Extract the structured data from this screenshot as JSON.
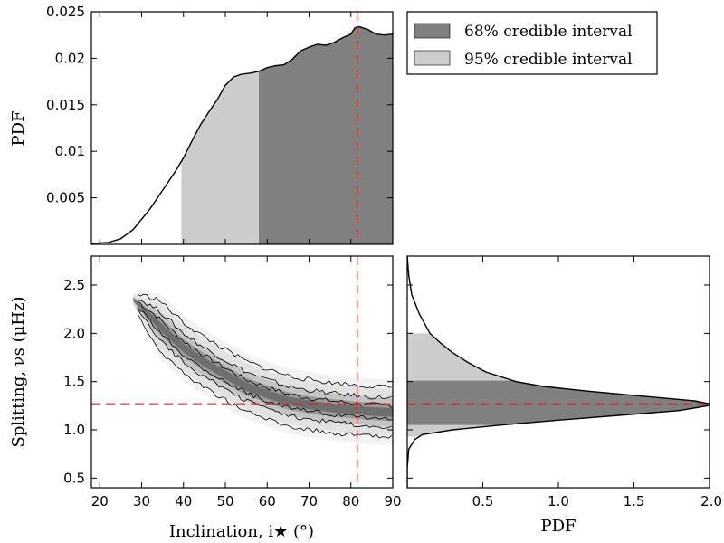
{
  "chart_data": [
    {
      "panel": "top",
      "type": "area",
      "ylabel": "PDF",
      "xlim": [
        18,
        90
      ],
      "ylim": [
        0,
        0.025
      ],
      "yticks": [
        "0.005",
        "0.01",
        "0.015",
        "0.02",
        "0.025"
      ],
      "marker_x": 81.5,
      "interval95": [
        39.5,
        90
      ],
      "interval68": [
        58,
        90
      ],
      "x": [
        18,
        22,
        25,
        28,
        30,
        32,
        35,
        38,
        40,
        42,
        44,
        46,
        48,
        50,
        52,
        54,
        56,
        58,
        60,
        62,
        64,
        66,
        68,
        70,
        72,
        74,
        76,
        78,
        80,
        81,
        82,
        84,
        86,
        88,
        90
      ],
      "y": [
        0.0001,
        0.0002,
        0.0006,
        0.0016,
        0.0027,
        0.0038,
        0.0058,
        0.0078,
        0.0093,
        0.0111,
        0.0128,
        0.0142,
        0.0155,
        0.0171,
        0.018,
        0.0183,
        0.0184,
        0.0186,
        0.019,
        0.0192,
        0.0193,
        0.0199,
        0.0208,
        0.0212,
        0.0215,
        0.0214,
        0.0217,
        0.0222,
        0.0226,
        0.0233,
        0.0234,
        0.0231,
        0.0226,
        0.0225,
        0.0226
      ],
      "colors": {
        "ci68": "#808080",
        "ci95": "#cccccc",
        "marker": "#d62728"
      }
    },
    {
      "panel": "bottom-left",
      "type": "heatmap",
      "xlabel": "Inclination, i★ (°)",
      "ylabel": "Splitting, νs (μHz)",
      "xlim": [
        18,
        90
      ],
      "ylim": [
        0.4,
        2.8
      ],
      "xticks": [
        "20",
        "30",
        "40",
        "50",
        "60",
        "70",
        "80",
        "90"
      ],
      "yticks": [
        "0.5",
        "1.0",
        "1.5",
        "2.0",
        "2.5"
      ],
      "marker_x": 81.5,
      "marker_y": 1.27,
      "ridge_x": [
        28,
        35,
        40,
        45,
        50,
        55,
        60,
        65,
        70,
        75,
        80,
        85,
        90
      ],
      "ridge_y": [
        2.35,
        2.05,
        1.85,
        1.7,
        1.57,
        1.45,
        1.37,
        1.3,
        1.26,
        1.23,
        1.21,
        1.19,
        1.18
      ],
      "contour_half_widths": [
        0.07,
        0.15,
        0.26
      ]
    },
    {
      "panel": "bottom-right",
      "type": "area",
      "orientation": "horizontal",
      "xlabel": "PDF",
      "xlim": [
        0,
        2.0
      ],
      "ylim": [
        0.4,
        2.8
      ],
      "xticks": [
        "0.5",
        "1.0",
        "1.5",
        "2.0"
      ],
      "marker_y": 1.27,
      "interval95": [
        0.93,
        2.0
      ],
      "interval68": [
        1.05,
        1.51
      ],
      "splitting": [
        0.4,
        0.6,
        0.8,
        0.9,
        0.95,
        1.0,
        1.05,
        1.1,
        1.15,
        1.2,
        1.25,
        1.27,
        1.3,
        1.35,
        1.4,
        1.45,
        1.5,
        1.6,
        1.7,
        1.8,
        1.9,
        2.0,
        2.2,
        2.4,
        2.6,
        2.8
      ],
      "pdf": [
        0.0,
        0.0,
        0.01,
        0.05,
        0.1,
        0.3,
        0.62,
        1.0,
        1.4,
        1.8,
        1.99,
        2.0,
        1.9,
        1.55,
        1.2,
        0.9,
        0.72,
        0.52,
        0.4,
        0.3,
        0.22,
        0.15,
        0.08,
        0.03,
        0.01,
        0.0
      ]
    }
  ],
  "legend": {
    "items": [
      {
        "label": "68% credible interval",
        "color": "#808080"
      },
      {
        "label": "95% credible interval",
        "color": "#cccccc"
      }
    ]
  }
}
